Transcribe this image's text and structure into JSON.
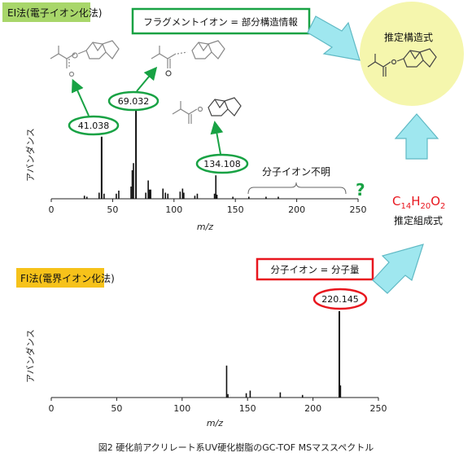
{
  "ei": {
    "badge": "EI法(電子イオン化法)",
    "note_box": "フラグメントイオン = 部分構造情報",
    "unknown_note": "分子イオン不明",
    "question_mark": "?"
  },
  "fi": {
    "badge": "FI法(電界イオン化法)",
    "note_box": "分子イオン = 分子量"
  },
  "result": {
    "circle_label": "推定構造式",
    "formula": "C14H20O2",
    "formula_label": "推定組成式"
  },
  "caption": "図2 硬化前アクリレート系UV硬化樹脂のGC-TOF MSマススペクトル",
  "colors": {
    "green": "#18a244",
    "red": "#e8161e",
    "badge_green": "#a8d66a",
    "badge_orange": "#f6c21a",
    "arrow_fill": "#9fe7ef",
    "arrow_stroke": "#5fb9c4",
    "bubble": "#f5f6ad"
  },
  "chart_data": [
    {
      "type": "bar",
      "name": "EI spectrum",
      "xlabel": "m/z",
      "ylabel": "アバンダンス",
      "xlim": [
        0,
        250
      ],
      "ylim": [
        0,
        1
      ],
      "xticks": [
        0,
        50,
        100,
        150,
        200,
        250
      ],
      "peaks": [
        {
          "x": 27,
          "y": 0.03
        },
        {
          "x": 29,
          "y": 0.02
        },
        {
          "x": 39,
          "y": 0.06
        },
        {
          "x": 41.038,
          "y": 0.61,
          "label": "41.038"
        },
        {
          "x": 43,
          "y": 0.05
        },
        {
          "x": 53,
          "y": 0.05
        },
        {
          "x": 55,
          "y": 0.08
        },
        {
          "x": 65,
          "y": 0.12
        },
        {
          "x": 66,
          "y": 0.28
        },
        {
          "x": 67,
          "y": 0.35
        },
        {
          "x": 69.032,
          "y": 1.0,
          "label": "69.032"
        },
        {
          "x": 77,
          "y": 0.06
        },
        {
          "x": 79,
          "y": 0.18
        },
        {
          "x": 80,
          "y": 0.09
        },
        {
          "x": 81,
          "y": 0.09
        },
        {
          "x": 91,
          "y": 0.1
        },
        {
          "x": 93,
          "y": 0.06
        },
        {
          "x": 95,
          "y": 0.05
        },
        {
          "x": 105,
          "y": 0.07
        },
        {
          "x": 107,
          "y": 0.1
        },
        {
          "x": 108,
          "y": 0.06
        },
        {
          "x": 117,
          "y": 0.03
        },
        {
          "x": 119,
          "y": 0.05
        },
        {
          "x": 133,
          "y": 0.05
        },
        {
          "x": 134.108,
          "y": 0.23,
          "label": "134.108"
        },
        {
          "x": 135,
          "y": 0.04
        },
        {
          "x": 148,
          "y": 0.02
        },
        {
          "x": 161,
          "y": 0.02
        },
        {
          "x": 175,
          "y": 0.02
        },
        {
          "x": 185,
          "y": 0.02
        }
      ]
    },
    {
      "type": "bar",
      "name": "FI spectrum",
      "xlabel": "m/z",
      "ylabel": "アバンダンス",
      "xlim": [
        0,
        250
      ],
      "ylim": [
        0,
        1
      ],
      "xticks": [
        0,
        50,
        100,
        150,
        200,
        250
      ],
      "peaks": [
        {
          "x": 134,
          "y": 0.37
        },
        {
          "x": 135,
          "y": 0.04
        },
        {
          "x": 149,
          "y": 0.05
        },
        {
          "x": 152,
          "y": 0.08
        },
        {
          "x": 175,
          "y": 0.06
        },
        {
          "x": 192,
          "y": 0.03
        },
        {
          "x": 220.145,
          "y": 1.0,
          "label": "220.145"
        },
        {
          "x": 221,
          "y": 0.14
        }
      ]
    }
  ]
}
